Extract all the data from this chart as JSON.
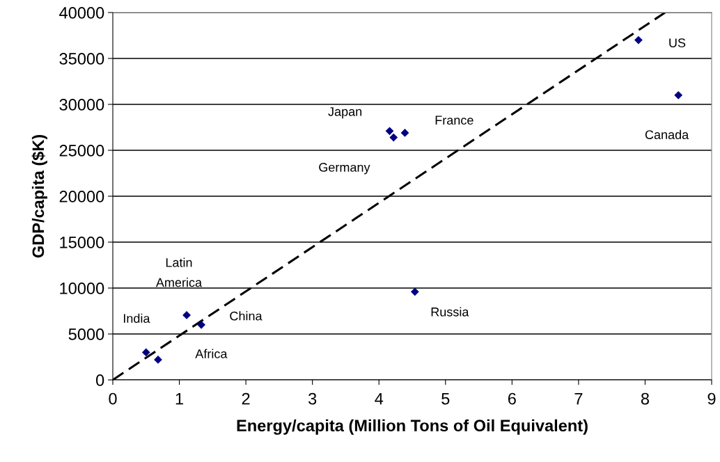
{
  "chart_data": {
    "type": "scatter",
    "xlabel": "Energy/capita (Million Tons of Oil Equivalent)",
    "ylabel": "GDP/capita ($K)",
    "xlim": [
      0,
      9
    ],
    "xticks": [
      0,
      1,
      2,
      3,
      4,
      5,
      6,
      7,
      8,
      9
    ],
    "ylim": [
      0,
      40000
    ],
    "yticks": [
      0,
      5000,
      10000,
      15000,
      20000,
      25000,
      30000,
      35000,
      40000
    ],
    "grid": "y",
    "legend": false,
    "series": [
      {
        "color": "#000080",
        "marker": "diamond",
        "x": [
          0.5,
          0.68,
          1.11,
          1.33,
          4.16,
          4.22,
          4.39,
          4.54,
          7.9,
          8.5
        ],
        "values": [
          3000,
          2200,
          7050,
          6000,
          27100,
          26400,
          26900,
          9600,
          37000,
          31000
        ]
      },
      {
        "type": "line",
        "color": "#000000",
        "line_style": "dashed",
        "marker": "none",
        "x": [
          0,
          8.3
        ],
        "values": [
          0,
          40000
        ]
      }
    ],
    "annotations": [
      {
        "text": "India",
        "x": 0.5,
        "y": 3000
      },
      {
        "text": "Africa",
        "x": 0.68,
        "y": 2200
      },
      {
        "text": "Latin\nAmerica",
        "x": 1.11,
        "y": 7050
      },
      {
        "text": "China",
        "x": 1.33,
        "y": 6000
      },
      {
        "text": "Japan",
        "x": 4.16,
        "y": 27100
      },
      {
        "text": "Germany",
        "x": 4.22,
        "y": 26400
      },
      {
        "text": "France",
        "x": 4.39,
        "y": 26900
      },
      {
        "text": "Russia",
        "x": 4.54,
        "y": 9600
      },
      {
        "text": "US",
        "x": 7.9,
        "y": 37000
      },
      {
        "text": "Canada",
        "x": 8.5,
        "y": 31000
      }
    ]
  }
}
